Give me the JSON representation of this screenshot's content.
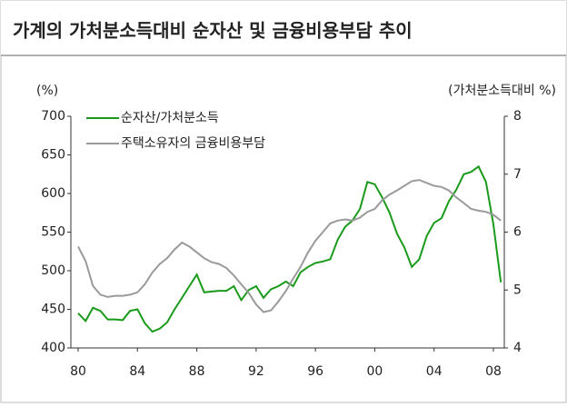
{
  "chart_data": {
    "type": "line",
    "title": "가계의 가처분소득대비 순자산 및 금융비용부담 추이",
    "y_label": "(%)",
    "y2_label": "(가처분소득대비 %)",
    "x": [
      1980,
      1980.5,
      1981,
      1981.5,
      1982,
      1982.5,
      1983,
      1983.5,
      1984,
      1984.5,
      1985,
      1985.5,
      1986,
      1986.5,
      1987,
      1987.5,
      1988,
      1988.5,
      1989,
      1989.5,
      1990,
      1990.5,
      1991,
      1991.5,
      1992,
      1992.5,
      1993,
      1993.5,
      1994,
      1994.5,
      1995,
      1995.5,
      1996,
      1996.5,
      1997,
      1997.5,
      1998,
      1998.5,
      1999,
      1999.5,
      2000,
      2000.5,
      2001,
      2001.5,
      2002,
      2002.5,
      2003,
      2003.5,
      2004,
      2004.5,
      2005,
      2005.5,
      2006,
      2006.5,
      2007,
      2007.5,
      2008,
      2008.5
    ],
    "series": [
      {
        "name": "순자산/가처분소득",
        "color": "#1a9a1a",
        "values": [
          445,
          435,
          452,
          448,
          437,
          437,
          436,
          448,
          450,
          432,
          421,
          425,
          433,
          450,
          465,
          480,
          495,
          472,
          473,
          474,
          474,
          480,
          462,
          475,
          480,
          465,
          476,
          480,
          486,
          480,
          498,
          505,
          510,
          512,
          515,
          540,
          557,
          565,
          580,
          615,
          612,
          595,
          575,
          548,
          530,
          505,
          515,
          545,
          562,
          568,
          590,
          605,
          625,
          628,
          635,
          615,
          560,
          485
        ]
      },
      {
        "name": "주택소유자의 금융비용부담",
        "color": "#9a9a9a",
        "axis": "y2",
        "values": [
          5.75,
          5.5,
          5.07,
          4.92,
          4.88,
          4.9,
          4.9,
          4.92,
          4.96,
          5.1,
          5.3,
          5.45,
          5.55,
          5.7,
          5.82,
          5.75,
          5.65,
          5.55,
          5.48,
          5.45,
          5.38,
          5.25,
          5.1,
          4.95,
          4.75,
          4.62,
          4.65,
          4.8,
          4.98,
          5.2,
          5.4,
          5.65,
          5.85,
          6.0,
          6.15,
          6.2,
          6.22,
          6.2,
          6.25,
          6.35,
          6.4,
          6.55,
          6.65,
          6.72,
          6.8,
          6.88,
          6.9,
          6.85,
          6.8,
          6.78,
          6.72,
          6.6,
          6.5,
          6.4,
          6.37,
          6.35,
          6.3,
          6.2
        ]
      }
    ],
    "xlim": [
      1980,
      2008
    ],
    "xticks": [
      {
        "value": 1980,
        "label": "80"
      },
      {
        "value": 1984,
        "label": "84"
      },
      {
        "value": 1988,
        "label": "88"
      },
      {
        "value": 1992,
        "label": "92"
      },
      {
        "value": 1996,
        "label": "96"
      },
      {
        "value": 2000,
        "label": "00"
      },
      {
        "value": 2004,
        "label": "04"
      },
      {
        "value": 2008,
        "label": "08"
      }
    ],
    "ylim": [
      400,
      700
    ],
    "yticks": [
      400,
      450,
      500,
      550,
      600,
      650,
      700
    ],
    "y2lim": [
      4,
      8
    ],
    "y2ticks": [
      4,
      5,
      6,
      7,
      8
    ],
    "legend": "top-left"
  }
}
